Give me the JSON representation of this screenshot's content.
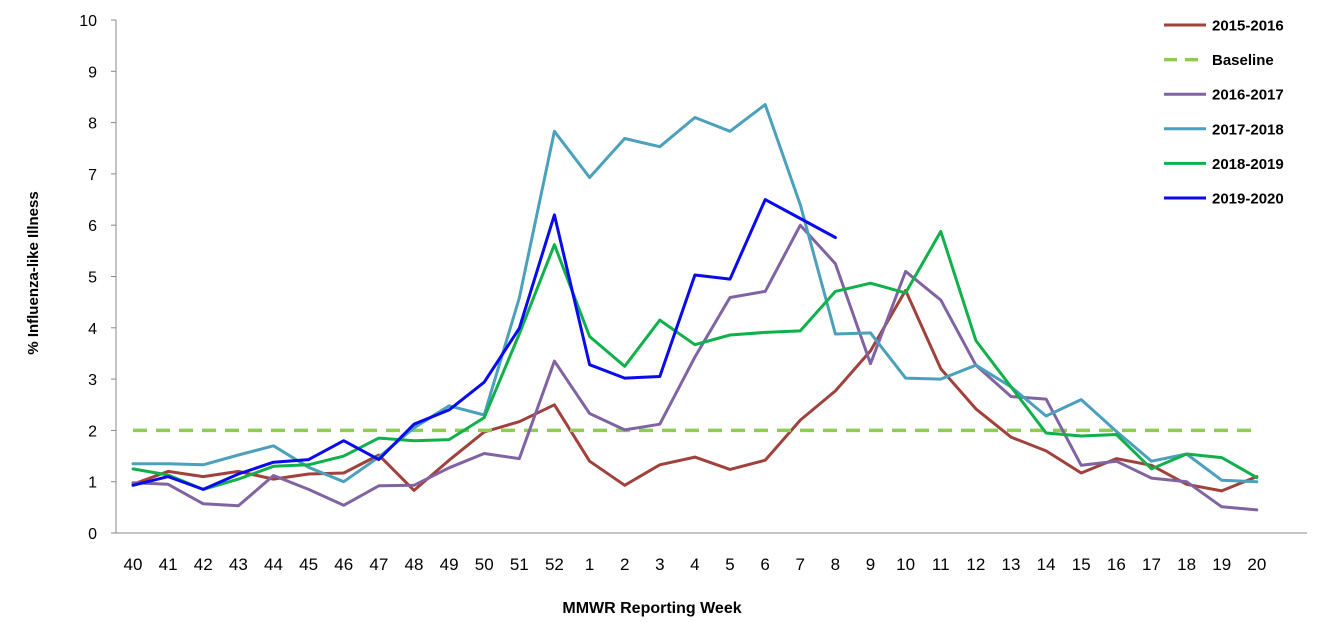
{
  "chart_data": {
    "type": "line",
    "title": "",
    "xlabel": "MMWR Reporting Week",
    "ylabel": "% Influenza-like Illness",
    "ylim": [
      0,
      10
    ],
    "yticks": [
      "0",
      "1",
      "2",
      "3",
      "4",
      "5",
      "6",
      "7",
      "8",
      "9",
      "10"
    ],
    "grid": false,
    "legend_position": "top-right",
    "categories": [
      "40",
      "41",
      "42",
      "43",
      "44",
      "45",
      "46",
      "47",
      "48",
      "49",
      "50",
      "51",
      "52",
      "1",
      "2",
      "3",
      "4",
      "5",
      "6",
      "7",
      "8",
      "9",
      "10",
      "11",
      "12",
      "13",
      "14",
      "15",
      "16",
      "17",
      "18",
      "19",
      "20"
    ],
    "series": [
      {
        "name": "2015-2016",
        "color": "#A0413C",
        "dashed": false,
        "values": [
          0.95,
          1.2,
          1.1,
          1.2,
          1.05,
          1.15,
          1.17,
          1.52,
          0.83,
          1.42,
          1.97,
          2.17,
          2.5,
          1.4,
          0.93,
          1.33,
          1.48,
          1.24,
          1.42,
          2.2,
          2.77,
          3.55,
          4.73,
          3.2,
          2.42,
          1.87,
          1.6,
          1.17,
          1.45,
          1.32,
          0.95,
          0.82,
          1.1
        ]
      },
      {
        "name": "Baseline",
        "color": "#8FCC55",
        "dashed": true,
        "values": [
          2,
          2,
          2,
          2,
          2,
          2,
          2,
          2,
          2,
          2,
          2,
          2,
          2,
          2,
          2,
          2,
          2,
          2,
          2,
          2,
          2,
          2,
          2,
          2,
          2,
          2,
          2,
          2,
          2,
          2,
          2,
          2,
          2
        ]
      },
      {
        "name": "2016-2017",
        "color": "#8064A2",
        "dashed": false,
        "values": [
          0.98,
          0.95,
          0.57,
          0.53,
          1.12,
          0.85,
          0.54,
          0.92,
          0.93,
          1.27,
          1.55,
          1.45,
          3.35,
          2.33,
          2.01,
          2.12,
          3.43,
          4.59,
          4.71,
          6.0,
          5.25,
          3.3,
          5.1,
          4.54,
          3.27,
          2.66,
          2.61,
          1.32,
          1.4,
          1.07,
          1.0,
          0.51,
          0.45
        ]
      },
      {
        "name": "2017-2018",
        "color": "#4BA0BC",
        "dashed": false,
        "values": [
          1.35,
          1.35,
          1.33,
          1.52,
          1.7,
          1.28,
          1.0,
          1.48,
          2.05,
          2.48,
          2.3,
          4.58,
          7.83,
          6.93,
          7.69,
          7.53,
          8.1,
          7.83,
          8.35,
          6.4,
          3.88,
          3.9,
          3.02,
          3.0,
          3.27,
          2.85,
          2.28,
          2.6,
          1.98,
          1.4,
          1.54,
          1.03,
          1.0
        ]
      },
      {
        "name": "2018-2019",
        "color": "#10B04B",
        "dashed": false,
        "values": [
          1.25,
          1.13,
          0.85,
          1.05,
          1.3,
          1.33,
          1.5,
          1.85,
          1.8,
          1.82,
          2.25,
          3.88,
          5.62,
          3.83,
          3.25,
          4.15,
          3.67,
          3.86,
          3.91,
          3.94,
          4.71,
          4.87,
          4.68,
          5.88,
          3.75,
          2.85,
          1.95,
          1.89,
          1.92,
          1.25,
          1.54,
          1.47,
          1.08
        ]
      },
      {
        "name": "2019-2020",
        "color": "#0A0AEE",
        "dashed": false,
        "values": [
          0.93,
          1.1,
          0.85,
          1.15,
          1.38,
          1.43,
          1.8,
          1.43,
          2.12,
          2.4,
          2.94,
          3.99,
          6.2,
          3.28,
          3.02,
          3.05,
          5.03,
          4.95,
          6.5,
          6.13,
          5.76,
          null,
          null,
          null,
          null,
          null,
          null,
          null,
          null,
          null,
          null,
          null,
          null
        ]
      }
    ]
  }
}
